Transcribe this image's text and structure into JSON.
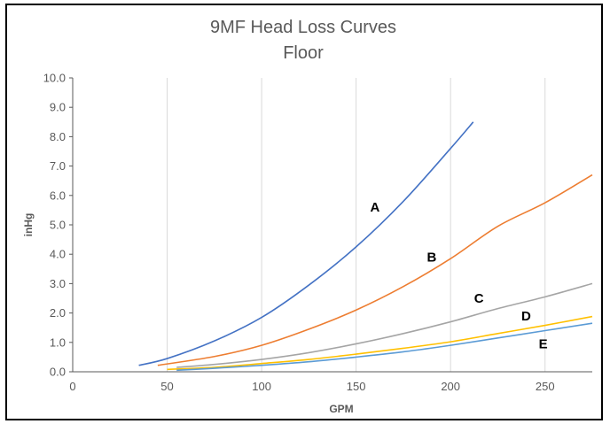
{
  "chart_data": {
    "type": "line",
    "title": "9MF Head Loss Curves",
    "subtitle": "Floor",
    "xlabel": "GPM",
    "ylabel": "inHg",
    "xlim": [
      0,
      275
    ],
    "ylim": [
      0,
      10
    ],
    "x_ticks": [
      "0",
      "50",
      "100",
      "150",
      "200",
      "250"
    ],
    "y_ticks": [
      "0.0",
      "1.0",
      "2.0",
      "3.0",
      "4.0",
      "5.0",
      "6.0",
      "7.0",
      "8.0",
      "9.0",
      "10.0"
    ],
    "grid": "vertical",
    "series": [
      {
        "name": "A",
        "color": "#4472c4",
        "x": [
          35,
          50,
          75,
          100,
          125,
          150,
          175,
          200,
          212
        ],
        "y": [
          0.22,
          0.45,
          1.05,
          1.85,
          2.95,
          4.25,
          5.8,
          7.6,
          8.5
        ]
      },
      {
        "name": "B",
        "color": "#ed7d31",
        "x": [
          45,
          75,
          100,
          125,
          150,
          175,
          200,
          225,
          250,
          275
        ],
        "y": [
          0.22,
          0.52,
          0.9,
          1.45,
          2.1,
          2.9,
          3.85,
          4.95,
          5.75,
          6.7
        ]
      },
      {
        "name": "C",
        "color": "#a5a5a5",
        "x": [
          55,
          75,
          100,
          125,
          150,
          175,
          200,
          225,
          250,
          275
        ],
        "y": [
          0.15,
          0.25,
          0.42,
          0.65,
          0.95,
          1.3,
          1.7,
          2.15,
          2.55,
          3.0
        ]
      },
      {
        "name": "D",
        "color": "#ffc000",
        "x": [
          50,
          75,
          100,
          125,
          150,
          175,
          200,
          225,
          250,
          275
        ],
        "y": [
          0.08,
          0.15,
          0.28,
          0.42,
          0.6,
          0.8,
          1.02,
          1.3,
          1.58,
          1.88
        ]
      },
      {
        "name": "E",
        "color": "#5b9bd5",
        "x": [
          55,
          75,
          100,
          125,
          150,
          175,
          200,
          225,
          250,
          275
        ],
        "y": [
          0.05,
          0.12,
          0.22,
          0.34,
          0.5,
          0.68,
          0.9,
          1.15,
          1.4,
          1.65
        ]
      }
    ]
  }
}
